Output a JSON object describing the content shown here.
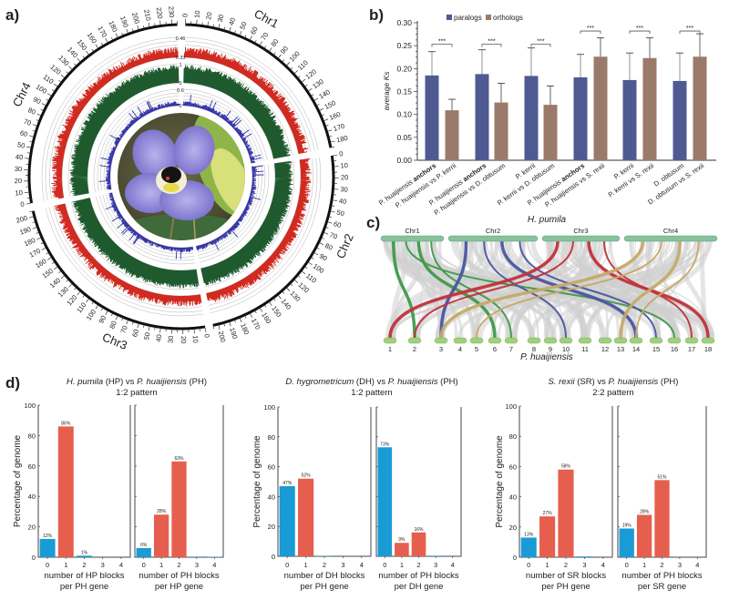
{
  "panel_labels": {
    "a": "a)",
    "b": "b)",
    "c": "c)",
    "d": "d)"
  },
  "chart_data": [
    {
      "type": "circos",
      "chromosomes": [
        {
          "name": "Chr1",
          "length": 185
        },
        {
          "name": "Chr2",
          "length": 205
        },
        {
          "name": "Chr3",
          "length": 205
        },
        {
          "name": "Chr4",
          "length": 235
        }
      ],
      "tick_label_interval": 10,
      "tracks": [
        {
          "color": "#d12a20",
          "axis_labels": [
            "0.46",
            "0.33"
          ]
        },
        {
          "color": "#1e5a2e",
          "axis_labels": [
            "1",
            "0"
          ]
        },
        {
          "color": "#3535a8",
          "axis_labels": [
            "0.6",
            "0"
          ]
        }
      ],
      "center_image": "flower-photo"
    },
    {
      "type": "bar",
      "legend": [
        "paralogs",
        "orthologs"
      ],
      "legend_placement": "top",
      "colors": {
        "paralogs": "#4f5a92",
        "orthologs": "#9b7a6b"
      },
      "ylabel": [
        {
          "text": "average ",
          "italic": false
        },
        {
          "text": "Ks",
          "italic": true
        }
      ],
      "ylim": [
        0,
        0.3
      ],
      "yticks": [
        "0.00",
        "0.05",
        "0.10",
        "0.15",
        "0.20",
        "0.25",
        "0.30"
      ],
      "categories": [
        [
          {
            "text": "P. huaijiensis ",
            "bold": false
          },
          {
            "text": "anchors",
            "bold": true
          }
        ],
        [
          {
            "text": "P. huaijiensis vs P. kerrii",
            "bold": false
          }
        ],
        [
          {
            "text": "P. huaijiensis ",
            "bold": false
          },
          {
            "text": "anchors",
            "bold": true
          }
        ],
        [
          {
            "text": "P. huaijiensis vs D. obtusum",
            "bold": false
          }
        ],
        [
          {
            "text": "P. kerrii",
            "bold": false
          }
        ],
        [
          {
            "text": "P. kerrii vs D. obtusum",
            "bold": false
          }
        ],
        [
          {
            "text": "P. huaijiensis ",
            "bold": false
          },
          {
            "text": "anchors",
            "bold": true
          }
        ],
        [
          {
            "text": "P. huaijiensis vs S. rexii",
            "bold": false
          }
        ],
        [
          {
            "text": "P. kerrii",
            "bold": false
          }
        ],
        [
          {
            "text": "P. kerrii vs S. rexii",
            "bold": false
          }
        ],
        [
          {
            "text": "D. obtusum",
            "bold": false
          }
        ],
        [
          {
            "text": "D. obtusum vs S. rexii",
            "bold": false
          }
        ]
      ],
      "series_per_category": [
        "paralogs",
        "orthologs",
        "paralogs",
        "orthologs",
        "paralogs",
        "orthologs",
        "paralogs",
        "orthologs",
        "paralogs",
        "orthologs",
        "paralogs",
        "orthologs"
      ],
      "values": [
        0.185,
        0.109,
        0.188,
        0.126,
        0.184,
        0.121,
        0.181,
        0.226,
        0.175,
        0.223,
        0.173,
        0.226
      ],
      "error_upper": [
        0.237,
        0.133,
        0.241,
        0.168,
        0.245,
        0.162,
        0.231,
        0.267,
        0.234,
        0.267,
        0.234,
        0.276
      ],
      "significance": [
        "***",
        "***",
        "***",
        "***",
        "***",
        "***"
      ]
    },
    {
      "type": "synteny",
      "top_title": "H. pumila",
      "bottom_title": "P. huaijiensis",
      "top_chromosomes": [
        "Chr1",
        "Chr2",
        "Chr3",
        "Chr4"
      ],
      "bottom_chromosomes": [
        "1",
        "2",
        "3",
        "4",
        "5",
        "6",
        "7",
        "8",
        "9",
        "10",
        "11",
        "12",
        "13",
        "14",
        "15",
        "16",
        "17",
        "18"
      ],
      "colors": {
        "Chr1": "#3f9a4a",
        "Chr2": "#4a55a0",
        "Chr3": "#c0323c",
        "Chr4": "#c6a96a",
        "background": "#cfcfcf",
        "top_bar": "#86c29c",
        "bottom_bar": "#9fd07c"
      },
      "links": [
        {
          "from": "Chr1",
          "to": "2"
        },
        {
          "from": "Chr1",
          "to": "16"
        },
        {
          "from": "Chr1",
          "to": "6"
        },
        {
          "from": "Chr1",
          "to": "7"
        },
        {
          "from": "Chr2",
          "to": "3"
        },
        {
          "from": "Chr2",
          "to": "10"
        },
        {
          "from": "Chr2",
          "to": "14"
        },
        {
          "from": "Chr2",
          "to": "15"
        },
        {
          "from": "Chr3",
          "to": "1"
        },
        {
          "from": "Chr3",
          "to": "2"
        },
        {
          "from": "Chr3",
          "to": "18"
        },
        {
          "from": "Chr3",
          "to": "17"
        },
        {
          "from": "Chr4",
          "to": "3"
        },
        {
          "from": "Chr4",
          "to": "5"
        },
        {
          "from": "Chr4",
          "to": "13"
        },
        {
          "from": "Chr4",
          "to": "14"
        }
      ]
    },
    {
      "type": "bar-group",
      "title": [
        {
          "text": "H. pumila",
          "italic": true
        },
        {
          "text": " (HP) vs ",
          "italic": false
        },
        {
          "text": "P. huaijiensis",
          "italic": true
        },
        {
          "text": " (PH)",
          "italic": false
        }
      ],
      "subtitle": "1:2 pattern",
      "ylabel": "Percentage of genome",
      "ylim": [
        0,
        100
      ],
      "yticks": [
        "0",
        "20",
        "40",
        "60",
        "80",
        "100"
      ],
      "colors": {
        "base": "#1b9bd6",
        "highlight": "#e65f4e"
      },
      "panels": [
        {
          "xlabel": [
            "number of HP blocks",
            "per PH gene"
          ],
          "categories": [
            "0",
            "1",
            "2",
            "3",
            "4"
          ],
          "values": [
            12,
            86,
            1,
            0,
            0
          ],
          "labels": [
            "12%",
            "86%",
            "1%",
            "",
            ""
          ],
          "highlight": [
            "1"
          ]
        },
        {
          "xlabel": [
            "number of PH blocks",
            "per HP gene"
          ],
          "categories": [
            "0",
            "1",
            "2",
            "3",
            "4"
          ],
          "values": [
            6,
            28,
            63,
            0.4,
            0.3
          ],
          "labels": [
            "6%",
            "28%",
            "63%",
            "",
            ""
          ],
          "highlight": [
            "1",
            "2"
          ]
        }
      ]
    },
    {
      "type": "bar-group",
      "title": [
        {
          "text": "D. hygrometricum",
          "italic": true
        },
        {
          "text": " (DH) vs ",
          "italic": false
        },
        {
          "text": "P. huaijiensis",
          "italic": true
        },
        {
          "text": " (PH)",
          "italic": false
        }
      ],
      "subtitle": "1:2 pattern",
      "ylabel": "Percentage of genome",
      "ylim": [
        0,
        100
      ],
      "yticks": [
        "0",
        "20",
        "40",
        "60",
        "80",
        "100"
      ],
      "colors": {
        "base": "#1b9bd6",
        "highlight": "#e65f4e"
      },
      "panels": [
        {
          "xlabel": [
            "number of DH blocks",
            "per PH gene"
          ],
          "categories": [
            "0",
            "1",
            "2",
            "3",
            "4"
          ],
          "values": [
            47,
            52,
            0.2,
            0,
            0
          ],
          "labels": [
            "47%",
            "52%",
            "",
            "",
            ""
          ],
          "highlight": [
            "1"
          ]
        },
        {
          "xlabel": [
            "number of PH blocks",
            "per DH gene"
          ],
          "categories": [
            "0",
            "1",
            "2",
            "3",
            "4"
          ],
          "values": [
            73,
            9,
            16,
            0.4,
            0
          ],
          "labels": [
            "73%",
            "9%",
            "16%",
            "",
            ""
          ],
          "highlight": [
            "1",
            "2"
          ]
        }
      ]
    },
    {
      "type": "bar-group",
      "title": [
        {
          "text": "S. rexii",
          "italic": true
        },
        {
          "text": " (SR) vs ",
          "italic": false
        },
        {
          "text": "P. huaijiensis",
          "italic": true
        },
        {
          "text": " (PH)",
          "italic": false
        }
      ],
      "subtitle": "2:2 pattern",
      "ylabel": "Percentage of genome",
      "ylim": [
        0,
        100
      ],
      "yticks": [
        "0",
        "20",
        "40",
        "60",
        "80",
        "100"
      ],
      "colors": {
        "base": "#1b9bd6",
        "highlight": "#e65f4e"
      },
      "panels": [
        {
          "xlabel": [
            "number of SR blocks",
            "per PH gene"
          ],
          "categories": [
            "0",
            "1",
            "2",
            "3",
            "4"
          ],
          "values": [
            13,
            27,
            58,
            0.5,
            0
          ],
          "labels": [
            "13%",
            "27%",
            "58%",
            "",
            ""
          ],
          "highlight": [
            "1",
            "2"
          ]
        },
        {
          "xlabel": [
            "number of PH blocks",
            "per SR gene"
          ],
          "categories": [
            "0",
            "1",
            "2",
            "3",
            "4"
          ],
          "values": [
            19,
            28,
            51,
            0,
            0
          ],
          "labels": [
            "19%",
            "28%",
            "51%",
            "",
            ""
          ],
          "highlight": [
            "1",
            "2"
          ]
        }
      ]
    }
  ]
}
